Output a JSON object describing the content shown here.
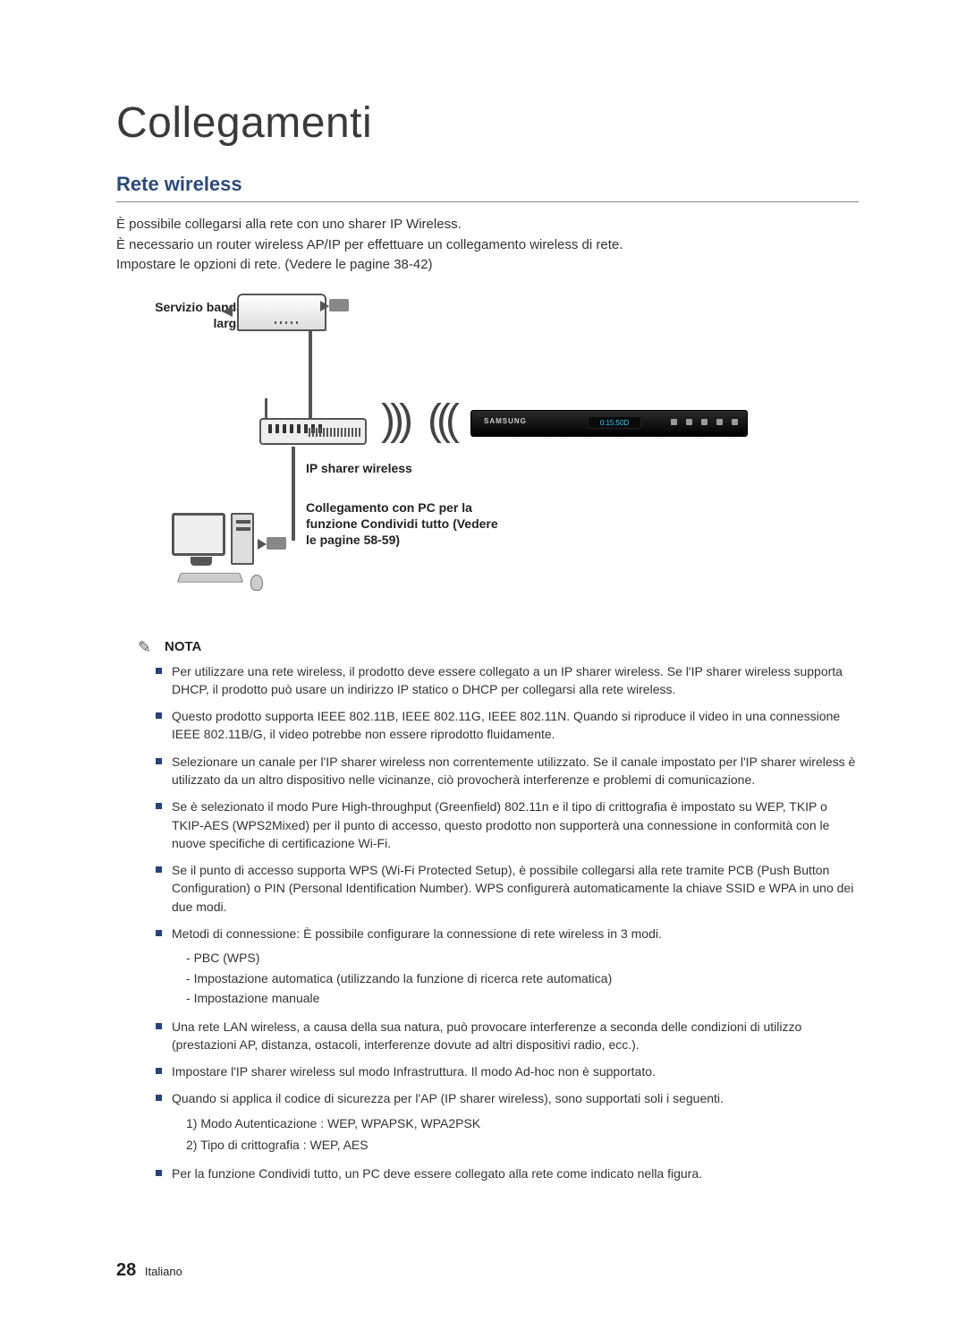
{
  "background_color": "#ffffff",
  "text_color": "#333333",
  "accent_color": "#27427a",
  "chapter_title": "Collegamenti",
  "section_title": "Rete wireless",
  "intro": {
    "l1": "È possibile collegarsi alla rete con uno sharer IP Wireless.",
    "l2": "È necessario un router wireless AP/IP per effettuare un collegamento wireless di rete.",
    "l3": "Impostare le opzioni di rete. (Vedere le pagine 38-42)"
  },
  "diagram": {
    "service_label": "Servizio banda larga",
    "router_label": "IP sharer wireless",
    "pc_label": "Collegamento con PC per la funzione Condividi tutto (Vedere le pagine 58-59)",
    "player_brand": "SAMSUNG",
    "player_display": "0:15:50D"
  },
  "note_label": "NOTA",
  "notes": [
    {
      "text": "Per utilizzare una rete wireless, il prodotto deve essere collegato a un IP sharer wireless. Se l'IP sharer wireless supporta DHCP, il prodotto può usare un indirizzo IP statico o DHCP per collegarsi alla rete wireless."
    },
    {
      "text": "Questo prodotto supporta IEEE 802.11B, IEEE 802.11G, IEEE 802.11N. Quando si riproduce il video in una connessione IEEE 802.11B/G, il video potrebbe non essere riprodotto fluidamente."
    },
    {
      "text": "Selezionare un canale per l'IP sharer wireless non correntemente utilizzato. Se il canale impostato per l'IP sharer wireless è utilizzato da un altro dispositivo nelle vicinanze, ciò provocherà interferenze e problemi di comunicazione."
    },
    {
      "text": "Se è selezionato il modo Pure High-throughput (Greenfield) 802.11n e il tipo di crittografia è impostato su WEP, TKIP o TKIP-AES (WPS2Mixed) per il punto di accesso, questo prodotto non supporterà una connessione in conformità con le nuove specifiche di certificazione Wi-Fi."
    },
    {
      "text": "Se il punto di accesso supporta WPS (Wi-Fi Protected Setup), è possibile collegarsi alla rete tramite PCB (Push Button Configuration) o PIN (Personal Identification Number). WPS configurerà automaticamente la chiave SSID e WPA in uno dei due modi."
    },
    {
      "text": "Metodi di connessione: È possibile configurare la connessione di rete wireless in 3 modi.",
      "sub": [
        "PBC (WPS)",
        "Impostazione automatica (utilizzando la funzione di ricerca rete automatica)",
        "Impostazione manuale"
      ]
    },
    {
      "text": "Una rete LAN wireless, a causa della sua natura, può provocare interferenze a seconda delle condizioni di utilizzo (prestazioni AP, distanza, ostacoli, interferenze dovute ad altri dispositivi radio, ecc.)."
    },
    {
      "text": "Impostare l'IP sharer wireless sul modo Infrastruttura. Il modo Ad-hoc non è supportato."
    },
    {
      "text": "Quando si applica il codice di sicurezza per l'AP (IP sharer wireless), sono supportati soli i seguenti.",
      "ol": [
        "1) Modo Autenticazione : WEP, WPAPSK, WPA2PSK",
        "2) Tipo di crittografia : WEP, AES"
      ]
    },
    {
      "text": "Per la funzione Condividi tutto, un PC deve essere collegato alla rete come indicato nella figura."
    }
  ],
  "footer": {
    "page": "28",
    "lang": "Italiano"
  }
}
